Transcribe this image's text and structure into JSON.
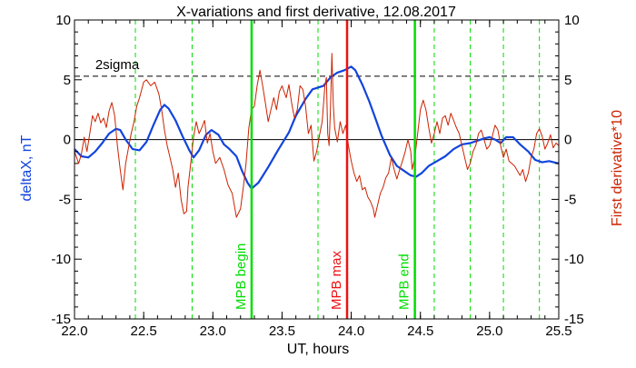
{
  "chart_data": {
    "type": "line",
    "title": "X-variations and first derivative, 12.08.2017",
    "xlabel": "UT, hours",
    "ylabel_left": "deltaX, nT",
    "ylabel_right": "First derivative*10",
    "xlim": [
      22.0,
      25.5
    ],
    "ylim": [
      -15,
      10
    ],
    "x_ticks": [
      22.0,
      22.5,
      23.0,
      23.5,
      24.0,
      24.5,
      25.0,
      25.5
    ],
    "x_tick_labels": [
      "22.0",
      "22.5",
      "23.0",
      "23.5",
      "24.0",
      "24.5",
      "25.0",
      "25.5"
    ],
    "y_ticks": [
      -15,
      -10,
      -5,
      0,
      5,
      10
    ],
    "y_tick_labels": [
      "-15",
      "-10",
      "-5",
      "0",
      "5",
      "10"
    ],
    "y_tick_labels_right": [
      "-15",
      "-10",
      "-5",
      "0",
      "5",
      "10"
    ],
    "threshold": {
      "label": "2sigma",
      "y": 5.3,
      "style": "dashed",
      "color": "#000000"
    },
    "zero_line": {
      "y": 0,
      "color": "#000000"
    },
    "markers": [
      {
        "label": "MPB begin",
        "x": 23.28,
        "color": "#00dd00"
      },
      {
        "label": "MPB max",
        "x": 23.97,
        "color": "#ee1111"
      },
      {
        "label": "MPB end",
        "x": 24.46,
        "color": "#00dd00"
      }
    ],
    "dashed_verticals": {
      "color": "#00dd00",
      "x": [
        22.44,
        22.85,
        23.76,
        24.6,
        24.86,
        25.1,
        25.36
      ]
    },
    "series": [
      {
        "label_text": "deltaX, nT",
        "color": "#1144dd",
        "axis": "left",
        "points": [
          [
            22.0,
            -0.8
          ],
          [
            22.05,
            -1.4
          ],
          [
            22.1,
            -1.5
          ],
          [
            22.15,
            -1.0
          ],
          [
            22.2,
            -0.3
          ],
          [
            22.25,
            0.5
          ],
          [
            22.3,
            0.9
          ],
          [
            22.33,
            0.8
          ],
          [
            22.37,
            0.0
          ],
          [
            22.42,
            -0.8
          ],
          [
            22.47,
            -0.9
          ],
          [
            22.52,
            -0.2
          ],
          [
            22.57,
            1.2
          ],
          [
            22.62,
            2.5
          ],
          [
            22.65,
            2.9
          ],
          [
            22.68,
            2.6
          ],
          [
            22.73,
            1.6
          ],
          [
            22.78,
            0.3
          ],
          [
            22.83,
            -0.9
          ],
          [
            22.86,
            -1.5
          ],
          [
            22.9,
            -0.9
          ],
          [
            22.95,
            0.4
          ],
          [
            22.99,
            0.8
          ],
          [
            23.04,
            0.4
          ],
          [
            23.08,
            -0.4
          ],
          [
            23.12,
            -0.8
          ],
          [
            23.17,
            -1.4
          ],
          [
            23.21,
            -2.6
          ],
          [
            23.25,
            -3.6
          ],
          [
            23.28,
            -4.1
          ],
          [
            23.33,
            -3.6
          ],
          [
            23.4,
            -2.3
          ],
          [
            23.47,
            -0.9
          ],
          [
            23.55,
            0.6
          ],
          [
            23.6,
            2.0
          ],
          [
            23.67,
            3.4
          ],
          [
            23.72,
            4.2
          ],
          [
            23.8,
            4.5
          ],
          [
            23.85,
            5.2
          ],
          [
            23.9,
            5.6
          ],
          [
            23.95,
            5.8
          ],
          [
            24.0,
            6.1
          ],
          [
            24.03,
            5.8
          ],
          [
            24.08,
            4.6
          ],
          [
            24.13,
            3.2
          ],
          [
            24.18,
            1.6
          ],
          [
            24.22,
            0.3
          ],
          [
            24.28,
            -1.3
          ],
          [
            24.33,
            -2.2
          ],
          [
            24.38,
            -2.6
          ],
          [
            24.43,
            -3.0
          ],
          [
            24.47,
            -3.1
          ],
          [
            24.51,
            -2.8
          ],
          [
            24.56,
            -2.2
          ],
          [
            24.62,
            -1.8
          ],
          [
            24.68,
            -1.4
          ],
          [
            24.74,
            -0.8
          ],
          [
            24.8,
            -0.4
          ],
          [
            24.86,
            -0.3
          ],
          [
            24.91,
            -0.1
          ],
          [
            24.96,
            0.1
          ],
          [
            25.0,
            0.2
          ],
          [
            25.04,
            0.0
          ],
          [
            25.08,
            -0.3
          ],
          [
            25.12,
            0.2
          ],
          [
            25.17,
            0.2
          ],
          [
            25.22,
            -0.4
          ],
          [
            25.28,
            -1.0
          ],
          [
            25.33,
            -1.7
          ],
          [
            25.38,
            -1.9
          ],
          [
            25.43,
            -1.8
          ],
          [
            25.5,
            -2.0
          ]
        ]
      },
      {
        "label_text": "First derivative*10",
        "color": "#cc2200",
        "axis": "right",
        "points": [
          [
            22.0,
            -1.0
          ],
          [
            22.03,
            -2.0
          ],
          [
            22.05,
            -1.2
          ],
          [
            22.07,
            0.2
          ],
          [
            22.09,
            -1.0
          ],
          [
            22.11,
            0.5
          ],
          [
            22.13,
            2.0
          ],
          [
            22.15,
            1.5
          ],
          [
            22.17,
            2.2
          ],
          [
            22.19,
            1.4
          ],
          [
            22.21,
            1.8
          ],
          [
            22.23,
            1.0
          ],
          [
            22.25,
            2.4
          ],
          [
            22.27,
            3.1
          ],
          [
            22.29,
            2.0
          ],
          [
            22.31,
            -0.5
          ],
          [
            22.33,
            -2.5
          ],
          [
            22.35,
            -4.2
          ],
          [
            22.37,
            -2.0
          ],
          [
            22.39,
            -0.7
          ],
          [
            22.41,
            0.5
          ],
          [
            22.43,
            1.5
          ],
          [
            22.45,
            2.8
          ],
          [
            22.47,
            3.5
          ],
          [
            22.5,
            4.8
          ],
          [
            22.52,
            5.0
          ],
          [
            22.55,
            4.5
          ],
          [
            22.58,
            4.8
          ],
          [
            22.61,
            3.8
          ],
          [
            22.63,
            2.5
          ],
          [
            22.65,
            0.8
          ],
          [
            22.67,
            -0.5
          ],
          [
            22.69,
            -1.5
          ],
          [
            22.71,
            -2.5
          ],
          [
            22.73,
            -4.0
          ],
          [
            22.75,
            -2.8
          ],
          [
            22.77,
            -5.0
          ],
          [
            22.79,
            -6.2
          ],
          [
            22.81,
            -6.0
          ],
          [
            22.82,
            -4.0
          ],
          [
            22.84,
            -2.0
          ],
          [
            22.86,
            0.2
          ],
          [
            22.88,
            1.5
          ],
          [
            22.9,
            0.5
          ],
          [
            22.92,
            1.0
          ],
          [
            22.94,
            1.6
          ],
          [
            22.96,
            -0.3
          ],
          [
            22.98,
            0.5
          ],
          [
            23.0,
            -1.0
          ],
          [
            23.02,
            -2.0
          ],
          [
            23.05,
            -1.5
          ],
          [
            23.08,
            -2.5
          ],
          [
            23.11,
            -3.8
          ],
          [
            23.14,
            -4.5
          ],
          [
            23.17,
            -6.5
          ],
          [
            23.2,
            -5.8
          ],
          [
            23.22,
            -4.0
          ],
          [
            23.24,
            -2.0
          ],
          [
            23.26,
            1.0
          ],
          [
            23.28,
            2.5
          ],
          [
            23.3,
            2.8
          ],
          [
            23.32,
            4.5
          ],
          [
            23.34,
            5.8
          ],
          [
            23.36,
            4.5
          ],
          [
            23.38,
            3.0
          ],
          [
            23.4,
            1.5
          ],
          [
            23.42,
            2.5
          ],
          [
            23.44,
            3.5
          ],
          [
            23.46,
            2.5
          ],
          [
            23.48,
            4.0
          ],
          [
            23.5,
            4.5
          ],
          [
            23.53,
            3.5
          ],
          [
            23.55,
            4.6
          ],
          [
            23.57,
            3.0
          ],
          [
            23.59,
            1.8
          ],
          [
            23.61,
            2.5
          ],
          [
            23.63,
            4.5
          ],
          [
            23.65,
            4.2
          ],
          [
            23.67,
            2.8
          ],
          [
            23.69,
            0.5
          ],
          [
            23.71,
            1.2
          ],
          [
            23.73,
            -1.8
          ],
          [
            23.75,
            -1.0
          ],
          [
            23.77,
            0.3
          ],
          [
            23.79,
            1.5
          ],
          [
            23.81,
            4.5
          ],
          [
            23.82,
            5.2
          ],
          [
            23.83,
            0.5
          ],
          [
            23.84,
            -0.5
          ],
          [
            23.85,
            2.5
          ],
          [
            23.86,
            7.2
          ],
          [
            23.87,
            3.0
          ],
          [
            23.88,
            1.0
          ],
          [
            23.9,
            -0.2
          ],
          [
            23.92,
            1.5
          ],
          [
            23.94,
            0.5
          ],
          [
            23.96,
            1.2
          ],
          [
            23.98,
            -0.5
          ],
          [
            24.0,
            -1.8
          ],
          [
            24.02,
            -2.8
          ],
          [
            24.04,
            -3.5
          ],
          [
            24.06,
            -3.0
          ],
          [
            24.08,
            -4.2
          ],
          [
            24.1,
            -4.0
          ],
          [
            24.12,
            -4.8
          ],
          [
            24.14,
            -5.2
          ],
          [
            24.16,
            -5.8
          ],
          [
            24.17,
            -6.5
          ],
          [
            24.19,
            -5.5
          ],
          [
            24.21,
            -4.5
          ],
          [
            24.23,
            -4.0
          ],
          [
            24.25,
            -3.2
          ],
          [
            24.27,
            -2.8
          ],
          [
            24.29,
            -1.5
          ],
          [
            24.31,
            -2.5
          ],
          [
            24.33,
            -3.3
          ],
          [
            24.35,
            -2.5
          ],
          [
            24.37,
            -1.8
          ],
          [
            24.39,
            -1.0
          ],
          [
            24.41,
            0.0
          ],
          [
            24.43,
            -1.0
          ],
          [
            24.44,
            -2.5
          ],
          [
            24.46,
            -1.5
          ],
          [
            24.48,
            0.5
          ],
          [
            24.5,
            2.5
          ],
          [
            24.52,
            3.3
          ],
          [
            24.54,
            2.5
          ],
          [
            24.56,
            1.0
          ],
          [
            24.58,
            -0.3
          ],
          [
            24.6,
            0.5
          ],
          [
            24.62,
            1.5
          ],
          [
            24.64,
            0.5
          ],
          [
            24.66,
            1.8
          ],
          [
            24.68,
            2.0
          ],
          [
            24.7,
            1.2
          ],
          [
            24.72,
            2.2
          ],
          [
            24.74,
            1.6
          ],
          [
            24.76,
            1.0
          ],
          [
            24.78,
            0.5
          ],
          [
            24.8,
            -0.5
          ],
          [
            24.82,
            -1.5
          ],
          [
            24.84,
            -2.5
          ],
          [
            24.86,
            -2.0
          ],
          [
            24.88,
            -1.0
          ],
          [
            24.9,
            -0.5
          ],
          [
            24.92,
            0.5
          ],
          [
            24.94,
            0.8
          ],
          [
            24.96,
            0.0
          ],
          [
            24.98,
            -0.8
          ],
          [
            25.0,
            -0.5
          ],
          [
            25.02,
            0.3
          ],
          [
            25.04,
            1.2
          ],
          [
            25.06,
            0.8
          ],
          [
            25.08,
            -0.5
          ],
          [
            25.1,
            -1.5
          ],
          [
            25.12,
            -0.8
          ],
          [
            25.14,
            -1.8
          ],
          [
            25.16,
            -2.0
          ],
          [
            25.18,
            -2.2
          ],
          [
            25.2,
            -2.6
          ],
          [
            25.22,
            -3.0
          ],
          [
            25.24,
            -2.5
          ],
          [
            25.26,
            -3.5
          ],
          [
            25.28,
            -2.8
          ],
          [
            25.3,
            -1.5
          ],
          [
            25.32,
            -0.8
          ],
          [
            25.34,
            0.5
          ],
          [
            25.36,
            0.9
          ],
          [
            25.38,
            0.3
          ],
          [
            25.4,
            -0.8
          ],
          [
            25.42,
            -0.3
          ],
          [
            25.44,
            0.4
          ],
          [
            25.46,
            -0.7
          ],
          [
            25.48,
            -0.3
          ],
          [
            25.5,
            -0.5
          ]
        ]
      }
    ]
  }
}
